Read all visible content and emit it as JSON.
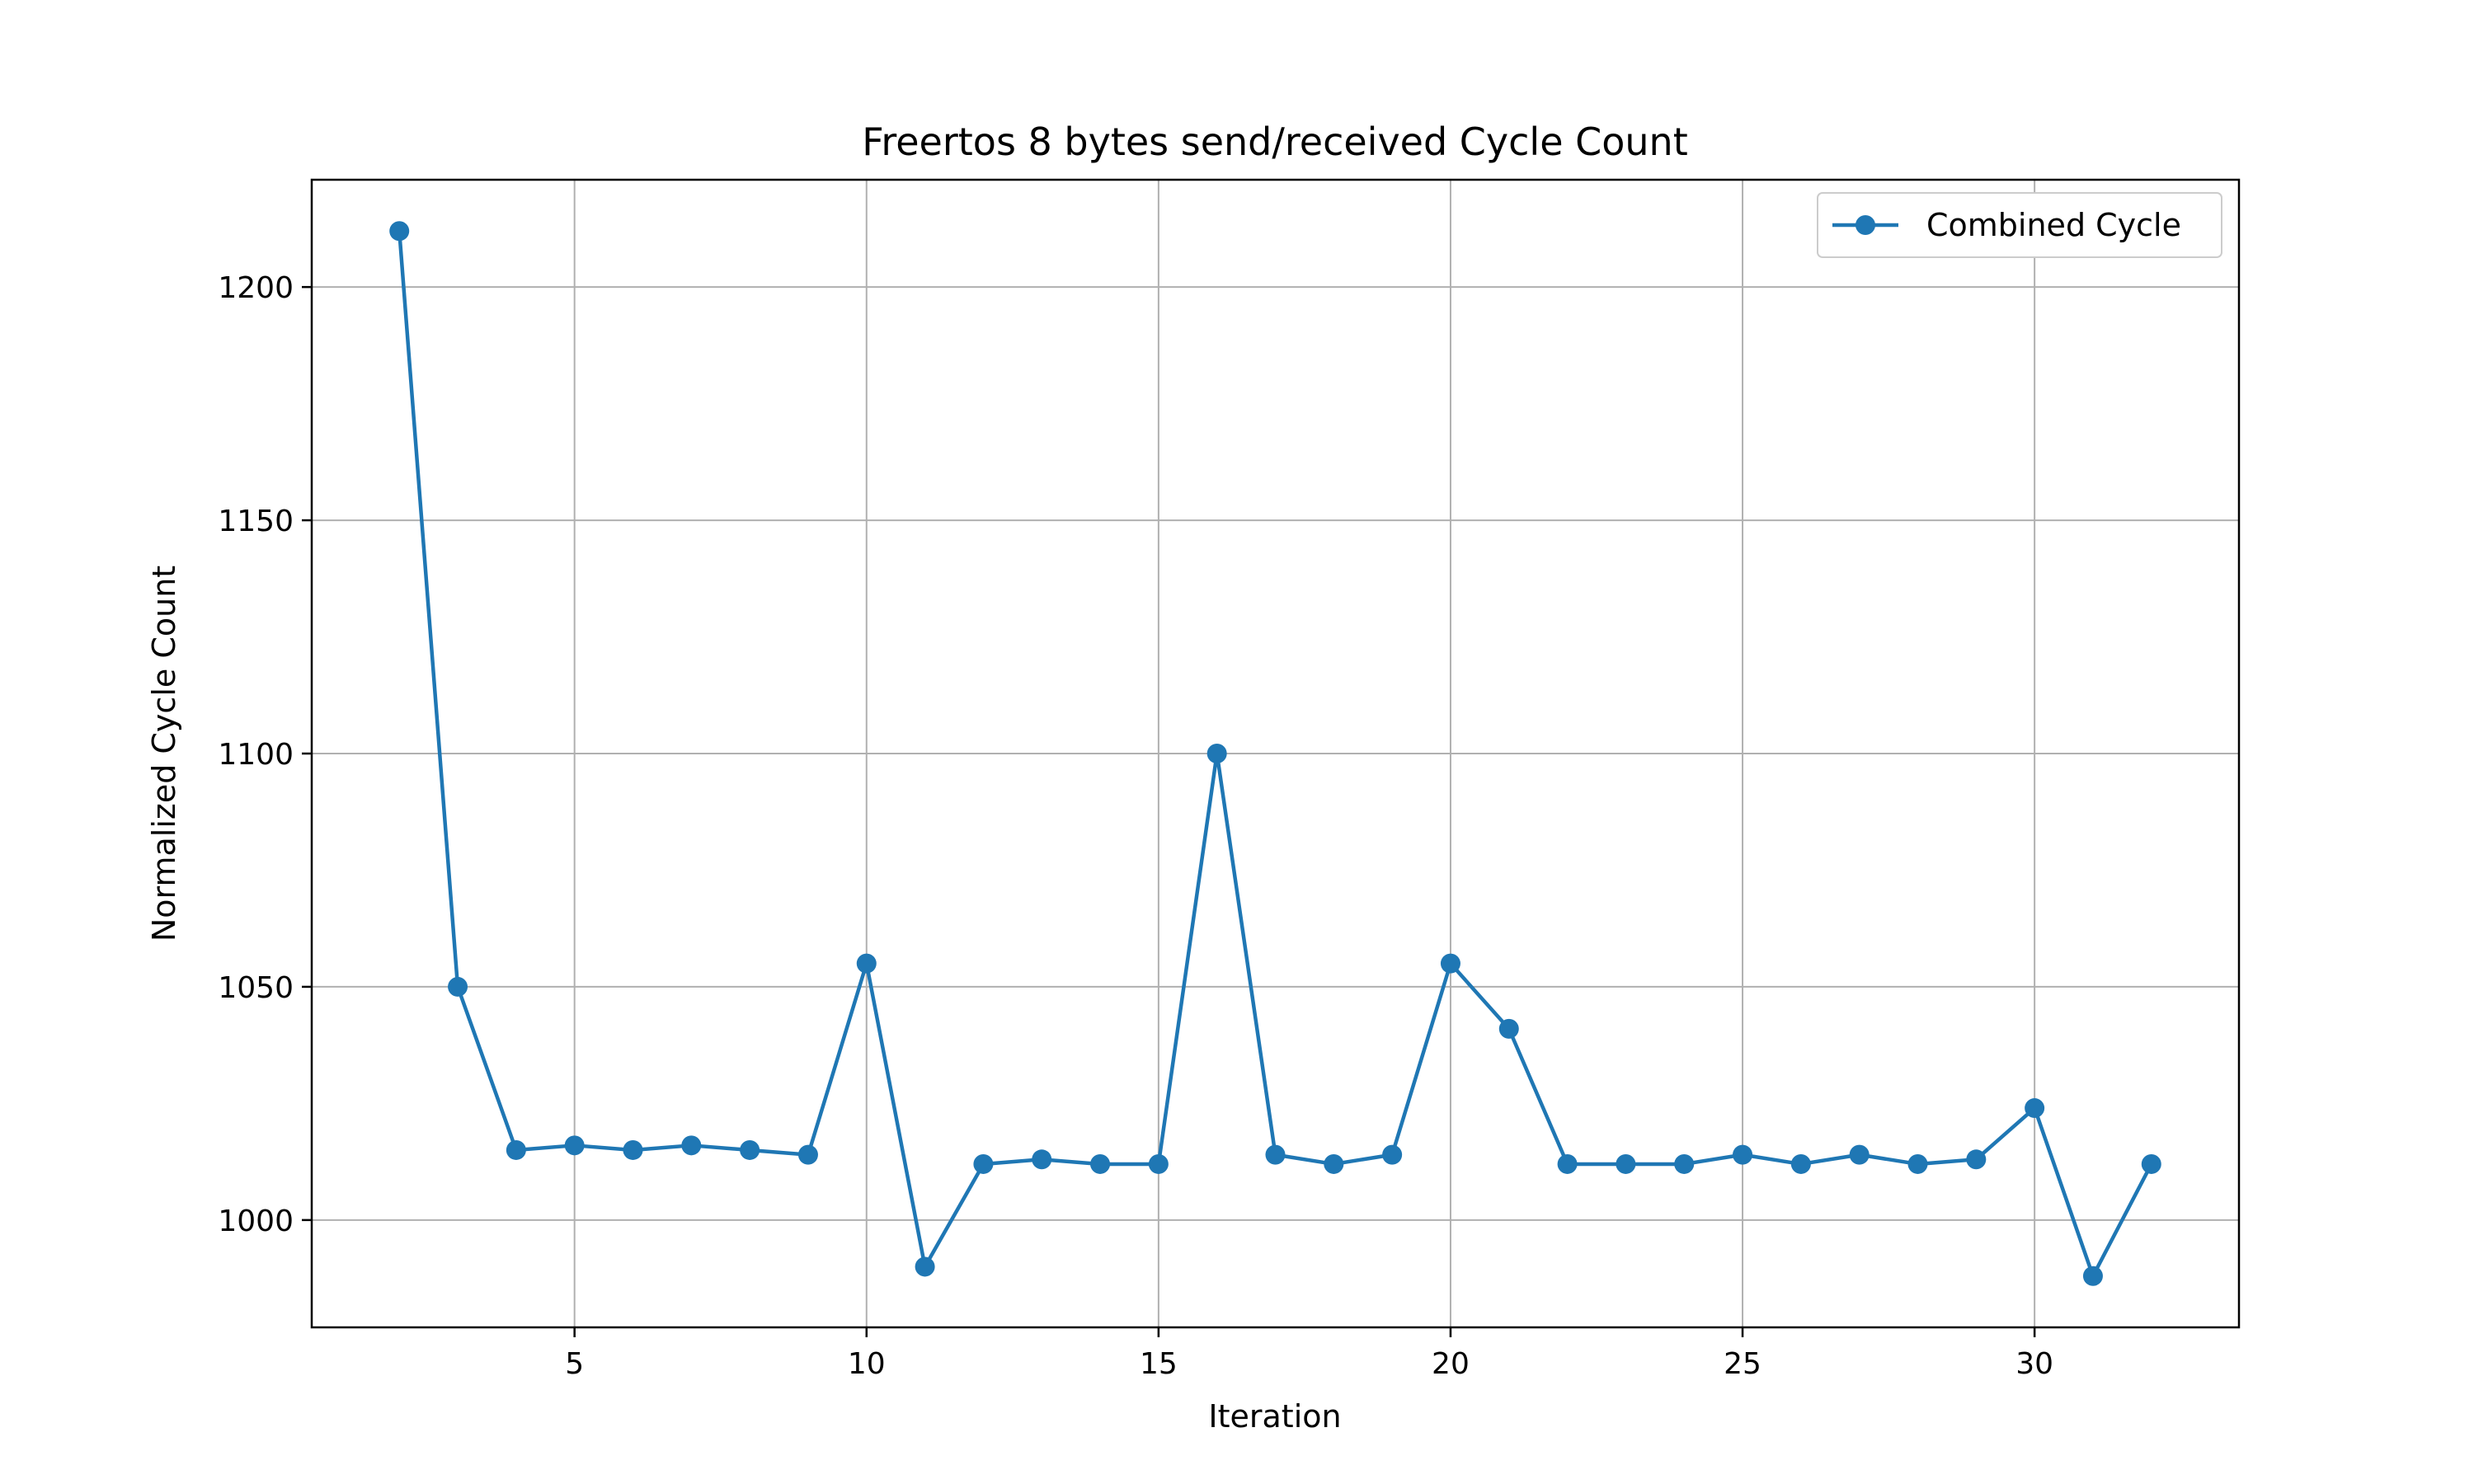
{
  "chart_data": {
    "type": "line",
    "title": "Freertos 8 bytes send/received Cycle Count",
    "xlabel": "Iteration",
    "ylabel": "Normalized Cycle Count",
    "xlim": [
      0.5,
      33.5
    ],
    "ylim": [
      977,
      1223
    ],
    "xticks": [
      5,
      10,
      15,
      20,
      25,
      30
    ],
    "yticks": [
      1000,
      1050,
      1100,
      1150,
      1200
    ],
    "grid": true,
    "legend_position": "top-right",
    "series": [
      {
        "name": "Combined Cycle",
        "color": "#1f77b4",
        "marker": "circle",
        "x": [
          2,
          3,
          4,
          5,
          6,
          7,
          8,
          9,
          10,
          11,
          12,
          13,
          14,
          15,
          16,
          17,
          18,
          19,
          20,
          21,
          22,
          23,
          24,
          25,
          26,
          27,
          28,
          29,
          30,
          31,
          32
        ],
        "y": [
          1212,
          1050,
          1015,
          1016,
          1015,
          1016,
          1015,
          1014,
          1055,
          990,
          1012,
          1013,
          1012,
          1012,
          1100,
          1014,
          1012,
          1014,
          1055,
          1041,
          1012,
          1012,
          1012,
          1014,
          1012,
          1014,
          1012,
          1013,
          1024,
          988,
          1012
        ]
      }
    ]
  }
}
